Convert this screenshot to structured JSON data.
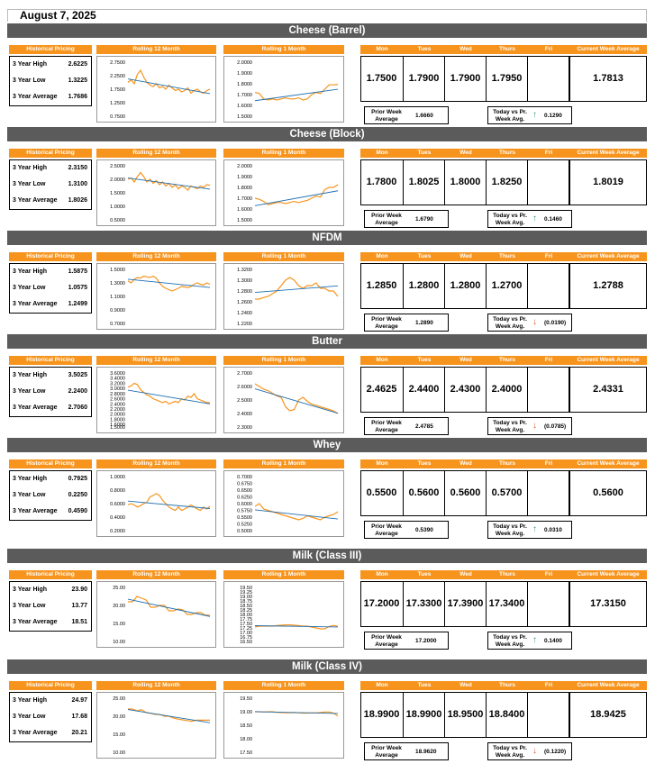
{
  "date": "August 7, 2025",
  "labels": {
    "historical": "Historical Pricing",
    "roll12": "Rolling 12 Month",
    "roll1": "Rolling 1 Month",
    "days": [
      "Mon",
      "Tues",
      "Wed",
      "Thurs",
      "Fri"
    ],
    "cwa": "Current Week Average",
    "high": "3 Year High",
    "low": "3 Year Low",
    "avg": "3 Year Average",
    "prior_line1": "Prior Week",
    "prior_line2": "Average",
    "today_line1": "Today vs Pr.",
    "today_line2": "Week Avg."
  },
  "colors": {
    "orange": "#f7941d",
    "header": "#5b5b5b",
    "trend": "#1f6fb2",
    "up": "#2e9b6b",
    "down": "#e0531b"
  },
  "sections": [
    {
      "title": "Cheese (Barrel)",
      "high": "2.6225",
      "low": "1.3225",
      "avg": "1.7686",
      "days": [
        "1.7500",
        "1.7900",
        "1.7900",
        "1.7950",
        ""
      ],
      "cwa": "1.7813",
      "prior": "1.6660",
      "change": "0.1290",
      "dir": "up",
      "y12": [
        "2.7500",
        "2.2500",
        "1.7500",
        "1.2500",
        "0.7500"
      ],
      "y12min": 0.75,
      "y12max": 2.75,
      "s12": [
        2.0,
        2.1,
        1.95,
        2.3,
        2.45,
        2.2,
        2.0,
        1.9,
        1.85,
        1.95,
        1.8,
        1.85,
        1.75,
        1.9,
        1.8,
        1.7,
        1.75,
        1.65,
        1.7,
        1.8,
        1.6,
        1.7,
        1.75,
        1.65,
        1.6,
        1.7,
        1.75
      ],
      "y1": [
        "2.0000",
        "1.9000",
        "1.8000",
        "1.7000",
        "1.6000",
        "1.5000"
      ],
      "y1min": 1.5,
      "y1max": 2.0,
      "s1": [
        1.72,
        1.71,
        1.66,
        1.65,
        1.66,
        1.65,
        1.66,
        1.67,
        1.66,
        1.66,
        1.67,
        1.65,
        1.66,
        1.7,
        1.72,
        1.71,
        1.75,
        1.79,
        1.79,
        1.795
      ]
    },
    {
      "title": "Cheese (Block)",
      "high": "2.3150",
      "low": "1.3100",
      "avg": "1.8026",
      "days": [
        "1.7800",
        "1.8025",
        "1.8000",
        "1.8250",
        ""
      ],
      "cwa": "1.8019",
      "prior": "1.6790",
      "change": "0.1460",
      "dir": "up",
      "y12": [
        "2.5000",
        "2.0000",
        "1.5000",
        "1.0000",
        "0.5000"
      ],
      "y12min": 0.5,
      "y12max": 2.5,
      "s12": [
        2.0,
        2.05,
        1.9,
        2.1,
        2.25,
        2.1,
        1.9,
        2.0,
        1.85,
        1.95,
        1.8,
        1.9,
        1.75,
        1.85,
        1.7,
        1.8,
        1.65,
        1.75,
        1.7,
        1.6,
        1.75,
        1.7,
        1.65,
        1.75,
        1.7,
        1.8,
        1.78
      ],
      "y1": [
        "2.0000",
        "1.9000",
        "1.8000",
        "1.7000",
        "1.6000",
        "1.5000"
      ],
      "y1min": 1.5,
      "y1max": 2.0,
      "s1": [
        1.7,
        1.69,
        1.67,
        1.64,
        1.65,
        1.66,
        1.66,
        1.65,
        1.66,
        1.67,
        1.66,
        1.67,
        1.68,
        1.7,
        1.72,
        1.71,
        1.78,
        1.8,
        1.8,
        1.825
      ]
    },
    {
      "title": "NFDM",
      "high": "1.5875",
      "low": "1.0575",
      "avg": "1.2499",
      "days": [
        "1.2850",
        "1.2800",
        "1.2800",
        "1.2700",
        ""
      ],
      "cwa": "1.2788",
      "prior": "1.2890",
      "change": "(0.0190)",
      "dir": "down",
      "y12": [
        "1.5000",
        "1.3000",
        "1.1000",
        "0.9000",
        "0.7000"
      ],
      "y12min": 0.7,
      "y12max": 1.5,
      "s12": [
        1.33,
        1.3,
        1.35,
        1.38,
        1.37,
        1.4,
        1.39,
        1.38,
        1.4,
        1.37,
        1.3,
        1.25,
        1.22,
        1.2,
        1.18,
        1.2,
        1.22,
        1.25,
        1.24,
        1.23,
        1.25,
        1.28,
        1.3,
        1.28,
        1.27,
        1.3,
        1.28
      ],
      "y1": [
        "1.3200",
        "1.3000",
        "1.2800",
        "1.2600",
        "1.2400",
        "1.2200"
      ],
      "y1min": 1.22,
      "y1max": 1.32,
      "s1": [
        1.265,
        1.265,
        1.268,
        1.27,
        1.275,
        1.28,
        1.29,
        1.3,
        1.305,
        1.3,
        1.29,
        1.285,
        1.29,
        1.29,
        1.295,
        1.285,
        1.285,
        1.28,
        1.28,
        1.27
      ]
    },
    {
      "title": "Butter",
      "high": "3.5025",
      "low": "2.2400",
      "avg": "2.7060",
      "days": [
        "2.4625",
        "2.4400",
        "2.4300",
        "2.4000",
        ""
      ],
      "cwa": "2.4331",
      "prior": "2.4785",
      "change": "(0.0785)",
      "dir": "down",
      "y12": [
        "3.6000",
        "3.4000",
        "3.2000",
        "3.0000",
        "2.8000",
        "2.6000",
        "2.4000",
        "2.2000",
        "2.0000",
        "1.8000",
        "1.6000",
        "1.5000"
      ],
      "y12min": 1.5,
      "y12max": 3.6,
      "s12": [
        3.05,
        3.1,
        3.2,
        3.15,
        2.95,
        2.85,
        2.75,
        2.7,
        2.6,
        2.55,
        2.5,
        2.45,
        2.5,
        2.4,
        2.45,
        2.5,
        2.45,
        2.6,
        2.55,
        2.7,
        2.65,
        2.8,
        2.6,
        2.55,
        2.5,
        2.45,
        2.45
      ],
      "y1": [
        "2.7000",
        "2.6000",
        "2.5000",
        "2.4000",
        "2.3000"
      ],
      "y1min": 2.3,
      "y1max": 2.7,
      "s1": [
        2.62,
        2.6,
        2.58,
        2.57,
        2.55,
        2.53,
        2.52,
        2.45,
        2.42,
        2.43,
        2.5,
        2.52,
        2.49,
        2.47,
        2.46,
        2.45,
        2.44,
        2.43,
        2.42,
        2.4
      ]
    },
    {
      "title": "Whey",
      "high": "0.7925",
      "low": "0.2250",
      "avg": "0.4590",
      "days": [
        "0.5500",
        "0.5600",
        "0.5600",
        "0.5700",
        ""
      ],
      "cwa": "0.5600",
      "prior": "0.5390",
      "change": "0.0310",
      "dir": "up",
      "y12": [
        "1.0000",
        "0.8000",
        "0.6000",
        "0.4000",
        "0.2000"
      ],
      "y12min": 0.2,
      "y12max": 1.0,
      "s12": [
        0.58,
        0.6,
        0.58,
        0.55,
        0.57,
        0.6,
        0.62,
        0.7,
        0.72,
        0.75,
        0.72,
        0.65,
        0.6,
        0.55,
        0.52,
        0.5,
        0.55,
        0.5,
        0.52,
        0.55,
        0.58,
        0.55,
        0.52,
        0.5,
        0.55,
        0.52,
        0.56
      ],
      "y1": [
        "0.7000",
        "0.6750",
        "0.6500",
        "0.6250",
        "0.6000",
        "0.5750",
        "0.5500",
        "0.5250",
        "0.5000"
      ],
      "y1min": 0.5,
      "y1max": 0.7,
      "s1": [
        0.59,
        0.6,
        0.58,
        0.575,
        0.57,
        0.565,
        0.56,
        0.555,
        0.55,
        0.545,
        0.54,
        0.545,
        0.555,
        0.55,
        0.545,
        0.54,
        0.55,
        0.555,
        0.56,
        0.57
      ]
    },
    {
      "title": "Milk (Class III)",
      "high": "23.90",
      "low": "13.77",
      "avg": "18.51",
      "days": [
        "17.2000",
        "17.3300",
        "17.3900",
        "17.3400",
        ""
      ],
      "cwa": "17.3150",
      "prior": "17.2000",
      "change": "0.1400",
      "dir": "up",
      "y12": [
        "25.00",
        "20.00",
        "15.00",
        "10.00"
      ],
      "y12min": 10,
      "y12max": 25,
      "s12": [
        21.0,
        21.0,
        22.5,
        22.0,
        21.5,
        19.5,
        19.5,
        20.0,
        20.0,
        18.5,
        18.5,
        19.0,
        18.8,
        17.5,
        17.5,
        18.0,
        18.0,
        17.3,
        17.3
      ],
      "y1": [
        "19.50",
        "19.25",
        "19.00",
        "18.75",
        "18.50",
        "18.25",
        "18.00",
        "17.75",
        "17.50",
        "17.25",
        "17.00",
        "16.75",
        "16.50"
      ],
      "y1min": 16.5,
      "y1max": 19.5,
      "s1": [
        17.3,
        17.35,
        17.35,
        17.35,
        17.35,
        17.38,
        17.4,
        17.42,
        17.42,
        17.4,
        17.38,
        17.35,
        17.35,
        17.3,
        17.25,
        17.2,
        17.2,
        17.33,
        17.39,
        17.34
      ]
    },
    {
      "title": "Milk (Class IV)",
      "high": "24.97",
      "low": "17.68",
      "avg": "20.21",
      "days": [
        "18.9900",
        "18.9900",
        "18.9500",
        "18.8400",
        ""
      ],
      "cwa": "18.9425",
      "prior": "18.9620",
      "change": "(0.1220)",
      "dir": "down",
      "y12": [
        "25.00",
        "20.00",
        "15.00",
        "10.00"
      ],
      "y12min": 10,
      "y12max": 25,
      "s12": [
        22.0,
        22.0,
        21.5,
        21.8,
        21.0,
        20.8,
        20.5,
        20.5,
        20.0,
        20.0,
        19.5,
        19.2,
        19.0,
        18.8,
        18.6,
        18.9,
        18.9,
        18.9,
        18.9
      ],
      "y1": [
        "19.50",
        "19.00",
        "18.50",
        "18.00",
        "17.50"
      ],
      "y1min": 17.5,
      "y1max": 19.5,
      "s1": [
        19.0,
        19.0,
        18.99,
        19.0,
        19.0,
        18.98,
        18.97,
        18.96,
        18.96,
        18.97,
        18.96,
        18.95,
        18.95,
        18.96,
        18.96,
        18.97,
        18.99,
        18.99,
        18.95,
        18.84
      ]
    }
  ]
}
